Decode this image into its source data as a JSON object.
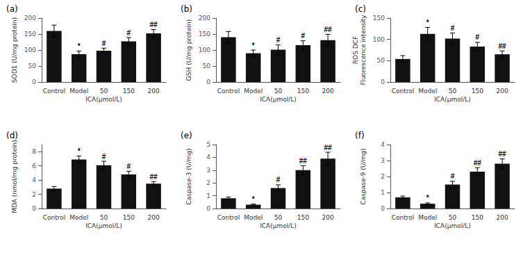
{
  "chart_data": [
    {
      "type": "bar",
      "title": "(a)",
      "ylabel": "SOD1 (U/mg protein)",
      "xlabel": "ICA(μmol/L)",
      "categories": [
        "Control",
        "Model",
        "50",
        "150",
        "200"
      ],
      "values": [
        160,
        87,
        98,
        127,
        152
      ],
      "errors": [
        18,
        10,
        8,
        12,
        12
      ],
      "annotations": [
        null,
        "*",
        "#",
        "#",
        "##"
      ],
      "color": "#111111",
      "ylim": [
        0,
        200
      ],
      "yticks": [
        0,
        50,
        100,
        150,
        200
      ],
      "grid": false
    },
    {
      "type": "bar",
      "title": "(b)",
      "ylabel": "GSH (U/mg protein)",
      "xlabel": "ICA(μmol/L)",
      "categories": [
        "Control",
        "Model",
        "50",
        "150",
        "200"
      ],
      "values": [
        140,
        90,
        101,
        115,
        131
      ],
      "errors": [
        18,
        10,
        15,
        14,
        18
      ],
      "annotations": [
        null,
        "*",
        "#",
        "#",
        "##"
      ],
      "color": "#111111",
      "ylim": [
        0,
        200
      ],
      "yticks": [
        0,
        50,
        100,
        150,
        200
      ],
      "grid": false
    },
    {
      "type": "bar",
      "title": "(c)",
      "ylabel": "ROS DCF\nFluorescence intensity",
      "xlabel": "ICA(μmol/L)",
      "categories": [
        "Control",
        "Model",
        "50",
        "150",
        "200"
      ],
      "values": [
        54,
        113,
        102,
        83,
        65
      ],
      "errors": [
        8,
        15,
        13,
        10,
        8
      ],
      "annotations": [
        null,
        "*",
        "#",
        "#",
        "##"
      ],
      "color": "#111111",
      "ylim": [
        0,
        150
      ],
      "yticks": [
        0,
        50,
        100,
        150
      ],
      "grid": false
    },
    {
      "type": "bar",
      "title": "(d)",
      "ylabel": "MDA (nmol/mg protein)",
      "xlabel": "ICA(μmol/L)",
      "categories": [
        "Control",
        "Model",
        "50",
        "150",
        "200"
      ],
      "values": [
        2.8,
        6.9,
        6.1,
        4.8,
        3.5
      ],
      "errors": [
        0.3,
        0.5,
        0.55,
        0.45,
        0.3
      ],
      "annotations": [
        null,
        "*",
        "#",
        "#",
        "##"
      ],
      "color": "#111111",
      "ylim": [
        0,
        9
      ],
      "yticks": [
        0,
        2,
        4,
        6,
        8
      ],
      "grid": false
    },
    {
      "type": "bar",
      "title": "(e)",
      "ylabel": "Caspase-3 (U/mg)",
      "xlabel": "ICA(μmol/L)",
      "categories": [
        "Control",
        "Model",
        "50",
        "150",
        "200"
      ],
      "values": [
        0.8,
        0.3,
        1.6,
        3.0,
        3.9
      ],
      "errors": [
        0.1,
        0.05,
        0.25,
        0.35,
        0.5
      ],
      "annotations": [
        null,
        "*",
        "#",
        "##",
        "##"
      ],
      "color": "#111111",
      "ylim": [
        0,
        5
      ],
      "yticks": [
        0,
        1,
        2,
        3,
        4,
        5
      ],
      "grid": false
    },
    {
      "type": "bar",
      "title": "(f)",
      "ylabel": "Caspase-9 (U/mg)",
      "xlabel": "ICA(μmol/L)",
      "categories": [
        "Control",
        "Model",
        "50",
        "150",
        "200"
      ],
      "values": [
        0.7,
        0.3,
        1.5,
        2.3,
        2.8
      ],
      "errors": [
        0.08,
        0.05,
        0.2,
        0.25,
        0.3
      ],
      "annotations": [
        null,
        "*",
        "#",
        "##",
        "##"
      ],
      "color": "#111111",
      "ylim": [
        0,
        4
      ],
      "yticks": [
        0,
        1,
        2,
        3,
        4
      ],
      "grid": false
    }
  ]
}
